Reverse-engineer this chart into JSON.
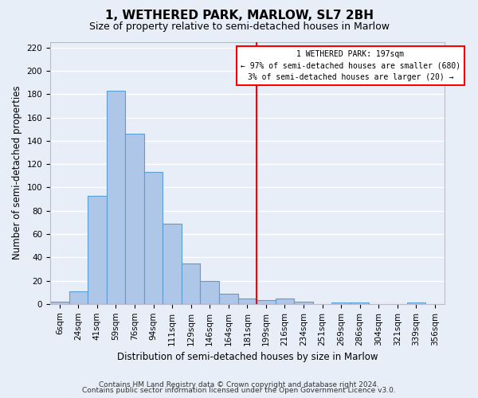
{
  "title": "1, WETHERED PARK, MARLOW, SL7 2BH",
  "subtitle": "Size of property relative to semi-detached houses in Marlow",
  "xlabel": "Distribution of semi-detached houses by size in Marlow",
  "ylabel": "Number of semi-detached properties",
  "categories": [
    "6sqm",
    "24sqm",
    "41sqm",
    "59sqm",
    "76sqm",
    "94sqm",
    "111sqm",
    "129sqm",
    "146sqm",
    "164sqm",
    "181sqm",
    "199sqm",
    "216sqm",
    "234sqm",
    "251sqm",
    "269sqm",
    "286sqm",
    "304sqm",
    "321sqm",
    "339sqm",
    "356sqm"
  ],
  "values": [
    2,
    11,
    93,
    183,
    146,
    113,
    69,
    35,
    20,
    9,
    5,
    3,
    5,
    2,
    0,
    1,
    1,
    0,
    0,
    1,
    0
  ],
  "bar_color": "#aec6e8",
  "bar_edge_color": "#5a9fd4",
  "annotation_title": "1 WETHERED PARK: 197sqm",
  "annotation_line1": "← 97% of semi-detached houses are smaller (680)",
  "annotation_line2": "3% of semi-detached houses are larger (20) →",
  "ylim": [
    0,
    225
  ],
  "yticks": [
    0,
    20,
    40,
    60,
    80,
    100,
    120,
    140,
    160,
    180,
    200,
    220
  ],
  "footer_line1": "Contains HM Land Registry data © Crown copyright and database right 2024.",
  "footer_line2": "Contains public sector information licensed under the Open Government Licence v3.0.",
  "background_color": "#e8eef8",
  "grid_color": "#ffffff",
  "title_fontsize": 11,
  "subtitle_fontsize": 9,
  "axis_label_fontsize": 8.5,
  "tick_fontsize": 7.5,
  "footer_fontsize": 6.5
}
